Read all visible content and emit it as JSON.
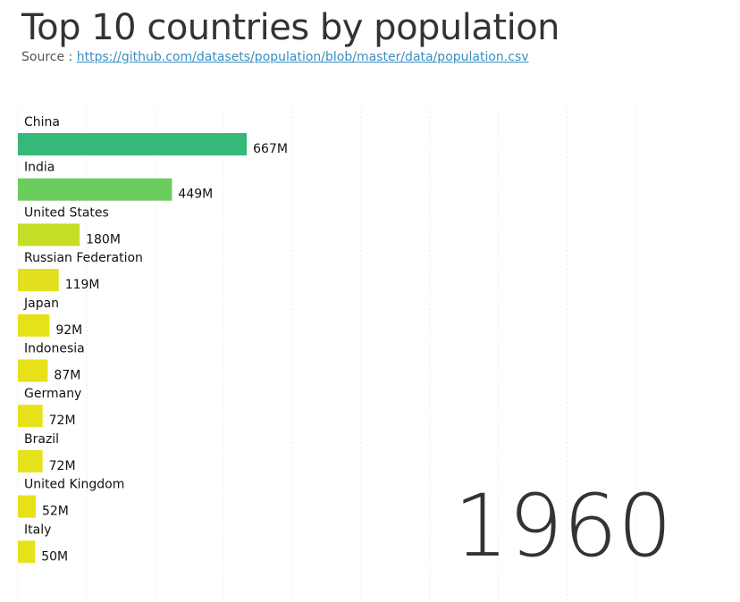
{
  "header": {
    "title": "Top 10 countries by population",
    "source_prefix": "Source :",
    "source_link": "https://github.com/datasets/population/blob/master/data/population.csv"
  },
  "chart_data": {
    "type": "bar",
    "orientation": "horizontal",
    "year": "1960",
    "categories": [
      "China",
      "India",
      "United States",
      "Russian Federation",
      "Japan",
      "Indonesia",
      "Germany",
      "Brazil",
      "United Kingdom",
      "Italy"
    ],
    "values": [
      667,
      449,
      180,
      119,
      92,
      87,
      72,
      72,
      52,
      50
    ],
    "value_labels": [
      "667M",
      "449M",
      "180M",
      "119M",
      "92M",
      "87M",
      "72M",
      "72M",
      "52M",
      "50M"
    ],
    "unit": "M",
    "xlim": [
      0,
      2000
    ],
    "grid": true,
    "colors": [
      "#36b878",
      "#6bcd5e",
      "#c6dd28",
      "#e2e01e",
      "#e7e11a",
      "#e7e11a",
      "#e7e11a",
      "#e7e11a",
      "#e7e11a",
      "#e7e11a"
    ]
  }
}
